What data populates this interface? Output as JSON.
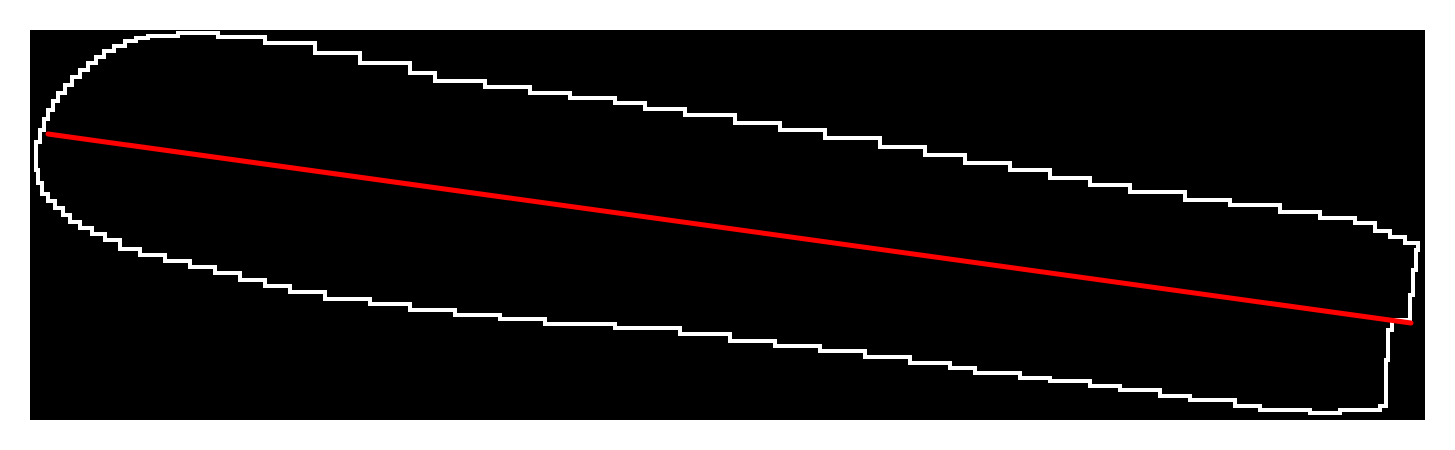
{
  "image": {
    "description_kind": "segmentation-mask",
    "background_color": "#000000",
    "page_color": "#ffffff",
    "contour": {
      "name": "object-outline",
      "color": "#ffffff",
      "style": "stepped-pixel"
    },
    "axis_line": {
      "name": "major-axis",
      "color": "#ff0000"
    }
  }
}
